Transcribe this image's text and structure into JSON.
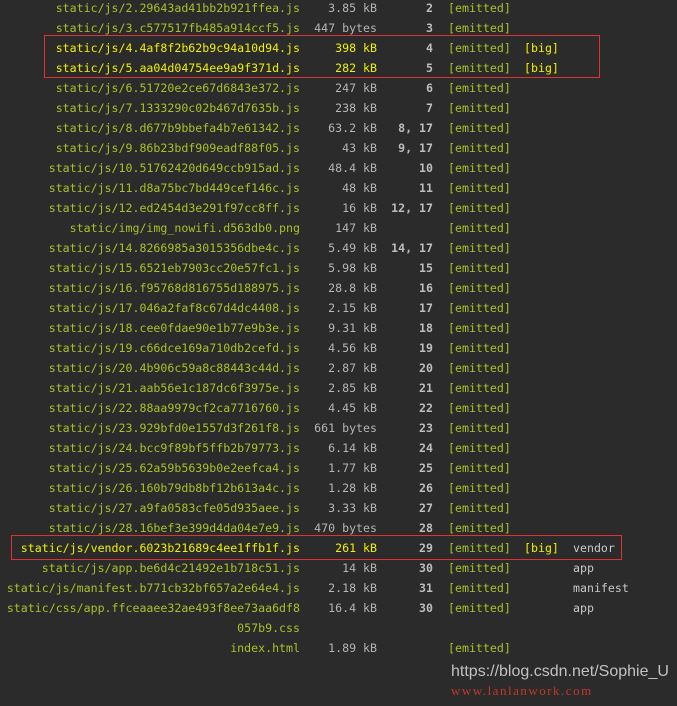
{
  "colors": {
    "background": "#2b2b2b",
    "file": "#a5c22a",
    "big": "#f0f000",
    "highlight": "#e03232"
  },
  "rows": [
    {
      "file": "static/js/2.29643ad41bb2b921ffea.js",
      "size": "3.85 kB",
      "chunks": "2",
      "status": "[emitted]",
      "big": "",
      "name": ""
    },
    {
      "file": "static/js/3.c577517fb485a914ccf5.js",
      "size": "447 bytes",
      "chunks": "3",
      "status": "[emitted]",
      "big": "",
      "name": ""
    },
    {
      "file": "static/js/4.4af8f2b62b9c94a10d94.js",
      "size": "398 kB",
      "chunks": "4",
      "status": "[emitted]",
      "big": "[big]",
      "name": ""
    },
    {
      "file": "static/js/5.aa04d04754ee9a9f371d.js",
      "size": "282 kB",
      "chunks": "5",
      "status": "[emitted]",
      "big": "[big]",
      "name": ""
    },
    {
      "file": "static/js/6.51720e2ce67d6843e372.js",
      "size": "247 kB",
      "chunks": "6",
      "status": "[emitted]",
      "big": "",
      "name": ""
    },
    {
      "file": "static/js/7.1333290c02b467d7635b.js",
      "size": "238 kB",
      "chunks": "7",
      "status": "[emitted]",
      "big": "",
      "name": ""
    },
    {
      "file": "static/js/8.d677b9bbefa4b7e61342.js",
      "size": "63.2 kB",
      "chunks": "8, 17",
      "status": "[emitted]",
      "big": "",
      "name": ""
    },
    {
      "file": "static/js/9.86b23bdf909eadf88f05.js",
      "size": "43 kB",
      "chunks": "9, 17",
      "status": "[emitted]",
      "big": "",
      "name": ""
    },
    {
      "file": "static/js/10.51762420d649ccb915ad.js",
      "size": "48.4 kB",
      "chunks": "10",
      "status": "[emitted]",
      "big": "",
      "name": ""
    },
    {
      "file": "static/js/11.d8a75bc7bd449cef146c.js",
      "size": "48 kB",
      "chunks": "11",
      "status": "[emitted]",
      "big": "",
      "name": ""
    },
    {
      "file": "static/js/12.ed2454d3e291f97cc8ff.js",
      "size": "16 kB",
      "chunks": "12, 17",
      "status": "[emitted]",
      "big": "",
      "name": ""
    },
    {
      "file": "static/img/img_nowifi.d563db0.png",
      "size": "147 kB",
      "chunks": "",
      "status": "[emitted]",
      "big": "",
      "name": ""
    },
    {
      "file": "static/js/14.8266985a3015356dbe4c.js",
      "size": "5.49 kB",
      "chunks": "14, 17",
      "status": "[emitted]",
      "big": "",
      "name": ""
    },
    {
      "file": "static/js/15.6521eb7903cc20e57fc1.js",
      "size": "5.98 kB",
      "chunks": "15",
      "status": "[emitted]",
      "big": "",
      "name": ""
    },
    {
      "file": "static/js/16.f95768d816755d188975.js",
      "size": "28.8 kB",
      "chunks": "16",
      "status": "[emitted]",
      "big": "",
      "name": ""
    },
    {
      "file": "static/js/17.046a2faf8c67d4dc4408.js",
      "size": "2.15 kB",
      "chunks": "17",
      "status": "[emitted]",
      "big": "",
      "name": ""
    },
    {
      "file": "static/js/18.cee0fdae90e1b77e9b3e.js",
      "size": "9.31 kB",
      "chunks": "18",
      "status": "[emitted]",
      "big": "",
      "name": ""
    },
    {
      "file": "static/js/19.c66dce169a710db2cefd.js",
      "size": "4.56 kB",
      "chunks": "19",
      "status": "[emitted]",
      "big": "",
      "name": ""
    },
    {
      "file": "static/js/20.4b906c59a8c88443c44d.js",
      "size": "2.87 kB",
      "chunks": "20",
      "status": "[emitted]",
      "big": "",
      "name": ""
    },
    {
      "file": "static/js/21.aab56e1c187dc6f3975e.js",
      "size": "2.85 kB",
      "chunks": "21",
      "status": "[emitted]",
      "big": "",
      "name": ""
    },
    {
      "file": "static/js/22.88aa9979cf2ca7716760.js",
      "size": "4.45 kB",
      "chunks": "22",
      "status": "[emitted]",
      "big": "",
      "name": ""
    },
    {
      "file": "static/js/23.929bfd0e1557d3f261f8.js",
      "size": "661 bytes",
      "chunks": "23",
      "status": "[emitted]",
      "big": "",
      "name": ""
    },
    {
      "file": "static/js/24.bcc9f89bf5ffb2b79773.js",
      "size": "6.14 kB",
      "chunks": "24",
      "status": "[emitted]",
      "big": "",
      "name": ""
    },
    {
      "file": "static/js/25.62a59b5639b0e2eefca4.js",
      "size": "1.77 kB",
      "chunks": "25",
      "status": "[emitted]",
      "big": "",
      "name": ""
    },
    {
      "file": "static/js/26.160b79db8bf12b613a4c.js",
      "size": "1.28 kB",
      "chunks": "26",
      "status": "[emitted]",
      "big": "",
      "name": ""
    },
    {
      "file": "static/js/27.a9fa0583cfe05d935aee.js",
      "size": "3.33 kB",
      "chunks": "27",
      "status": "[emitted]",
      "big": "",
      "name": ""
    },
    {
      "file": "static/js/28.16bef3e399d4da04e7e9.js",
      "size": "470 bytes",
      "chunks": "28",
      "status": "[emitted]",
      "big": "",
      "name": ""
    },
    {
      "file": "static/js/vendor.6023b21689c4ee1ffb1f.js",
      "size": "261 kB",
      "chunks": "29",
      "status": "[emitted]",
      "big": "[big]",
      "name": "vendor"
    },
    {
      "file": "static/js/app.be6d4c21492e1b718c51.js",
      "size": "14 kB",
      "chunks": "30",
      "status": "[emitted]",
      "big": "",
      "name": "app"
    },
    {
      "file": "static/js/manifest.b771cb32bf657a2e64e4.js",
      "size": "2.18 kB",
      "chunks": "31",
      "status": "[emitted]",
      "big": "",
      "name": "manifest"
    },
    {
      "file": "static/css/app.ffceaaee32ae493f8ee73aa6df8057b9.css",
      "size": "16.4 kB",
      "chunks": "30",
      "status": "[emitted]",
      "big": "",
      "name": "app"
    },
    {
      "file": "index.html",
      "size": "1.89 kB",
      "chunks": "",
      "status": "[emitted]",
      "big": "",
      "name": ""
    }
  ],
  "watermark": {
    "blog": "https://blog.csdn.net/Sophie_U",
    "site": "www.lanlanwork.com"
  }
}
